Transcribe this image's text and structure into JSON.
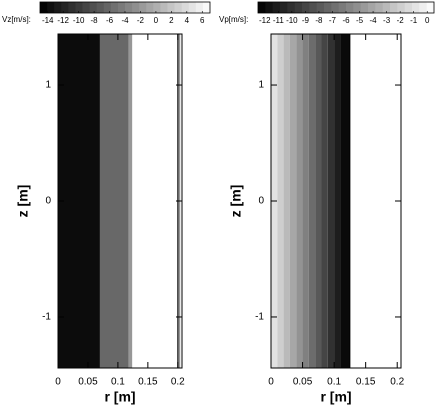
{
  "chart_data": [
    {
      "type": "contour",
      "colorbar_label": "Vz[m/s]:",
      "colorbar_ticks": [
        -14,
        -12,
        -10,
        -8,
        -6,
        -4,
        -2,
        0,
        2,
        4,
        6
      ],
      "clim": [
        -15,
        7
      ],
      "xlabel": "r [m]",
      "ylabel": "z [m]",
      "xlim": [
        0,
        0.207
      ],
      "ylim": [
        -1.44,
        1.44
      ],
      "xticks": [
        0,
        0.05,
        0.1,
        0.15,
        0.2
      ],
      "yticks": [
        -1,
        0,
        1
      ],
      "regions": [
        {
          "r0": 0,
          "r1": 0.07,
          "value": -14
        },
        {
          "r0": 0.07,
          "r1": 0.118,
          "value": -6
        },
        {
          "r0": 0.118,
          "r1": 0.124,
          "value": -2
        },
        {
          "r0": 0.124,
          "r1": 0.2,
          "value": 7
        },
        {
          "r0": 0.2,
          "r1": 0.204,
          "value": -2
        }
      ]
    },
    {
      "type": "contour",
      "colorbar_label": "Vp[m/s]:",
      "colorbar_ticks": [
        -12,
        -11,
        -10,
        -9,
        -8,
        -7,
        -6,
        -5,
        -4,
        -3,
        -2,
        -1,
        0
      ],
      "clim": [
        -12.5,
        0.5
      ],
      "xlabel": "r [m]",
      "ylabel": "z [m]",
      "xlim": [
        0,
        0.206
      ],
      "ylim": [
        -1.44,
        1.44
      ],
      "xticks": [
        0,
        0.05,
        0.1,
        0.15,
        0.2
      ],
      "yticks": [
        -1,
        0,
        1
      ],
      "regions": [
        {
          "r0": 0,
          "r1": 0.01,
          "value": -1
        },
        {
          "r0": 0.01,
          "r1": 0.02,
          "value": -2
        },
        {
          "r0": 0.02,
          "r1": 0.03,
          "value": -3
        },
        {
          "r0": 0.03,
          "r1": 0.04,
          "value": -4
        },
        {
          "r0": 0.04,
          "r1": 0.05,
          "value": -5
        },
        {
          "r0": 0.05,
          "r1": 0.06,
          "value": -6
        },
        {
          "r0": 0.06,
          "r1": 0.07,
          "value": -7
        },
        {
          "r0": 0.07,
          "r1": 0.08,
          "value": -8
        },
        {
          "r0": 0.08,
          "r1": 0.09,
          "value": -9
        },
        {
          "r0": 0.09,
          "r1": 0.1,
          "value": -10
        },
        {
          "r0": 0.1,
          "r1": 0.11,
          "value": -11
        },
        {
          "r0": 0.11,
          "r1": 0.125,
          "value": -12
        },
        {
          "r0": 0.125,
          "r1": 0.206,
          "value": 0.5
        }
      ]
    }
  ]
}
